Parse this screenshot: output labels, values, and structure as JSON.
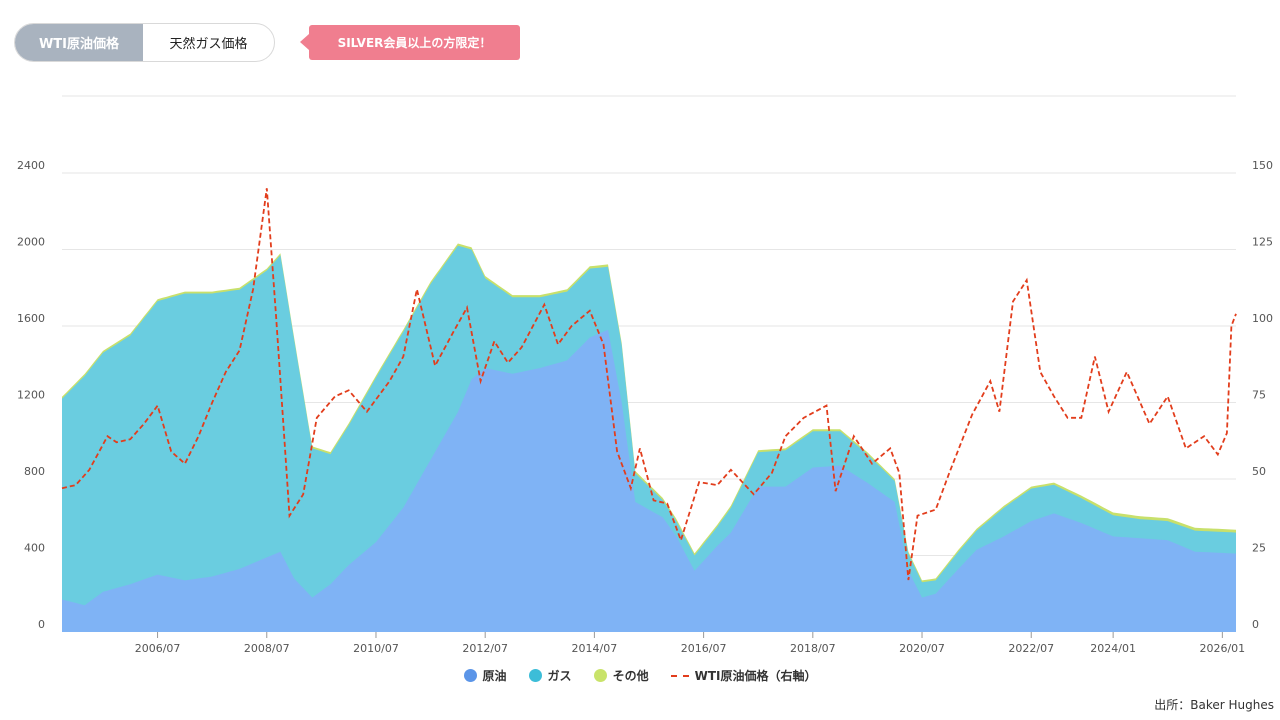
{
  "tabs": {
    "active_label": "WTI原油価格",
    "inactive_label": "天然ガス価格"
  },
  "badge": {
    "label": "SILVER会員以上の方限定！"
  },
  "source": "出所：Baker Hughes",
  "colors": {
    "oil": "#7fb3f5",
    "gas": "#6acde0",
    "other": "#c8e06b",
    "wti": "#e23d1c",
    "legend_oil": "#5b95e8",
    "legend_gas": "#3cbdd8",
    "legend_other": "#c9e36a"
  },
  "chart_data": {
    "type": "area",
    "stacked": true,
    "x_type": "date",
    "x_range": [
      "2004-10",
      "2026-04"
    ],
    "xticks": [
      "2006/07",
      "2008/07",
      "2010/07",
      "2012/07",
      "2014/07",
      "2016/07",
      "2018/07",
      "2020/07",
      "2022/07",
      "2024/01",
      "2026/01"
    ],
    "y_left": {
      "ticks": [
        0,
        400,
        800,
        1200,
        1600,
        2000,
        2400
      ],
      "range": [
        0,
        2400
      ]
    },
    "y_right": {
      "ticks": [
        0,
        25,
        50,
        75,
        100,
        125,
        150
      ],
      "range": [
        0,
        150
      ]
    },
    "grid": true,
    "legend_position": "bottom",
    "series": [
      {
        "name": "原油",
        "axis": "left",
        "kind": "area",
        "points": [
          [
            "2004-10",
            170
          ],
          [
            "2005-03",
            140
          ],
          [
            "2005-07",
            210
          ],
          [
            "2006-01",
            250
          ],
          [
            "2006-07",
            300
          ],
          [
            "2007-01",
            270
          ],
          [
            "2007-07",
            290
          ],
          [
            "2008-01",
            330
          ],
          [
            "2008-07",
            390
          ],
          [
            "2008-10",
            420
          ],
          [
            "2009-01",
            280
          ],
          [
            "2009-05",
            180
          ],
          [
            "2009-09",
            250
          ],
          [
            "2010-01",
            350
          ],
          [
            "2010-07",
            470
          ],
          [
            "2011-01",
            650
          ],
          [
            "2011-07",
            900
          ],
          [
            "2012-01",
            1150
          ],
          [
            "2012-04",
            1320
          ],
          [
            "2012-07",
            1380
          ],
          [
            "2013-01",
            1350
          ],
          [
            "2013-07",
            1380
          ],
          [
            "2014-01",
            1420
          ],
          [
            "2014-06",
            1540
          ],
          [
            "2014-10",
            1580
          ],
          [
            "2015-01",
            1200
          ],
          [
            "2015-04",
            680
          ],
          [
            "2015-10",
            600
          ],
          [
            "2016-01",
            500
          ],
          [
            "2016-05",
            320
          ],
          [
            "2016-10",
            450
          ],
          [
            "2017-01",
            520
          ],
          [
            "2017-07",
            760
          ],
          [
            "2018-01",
            760
          ],
          [
            "2018-07",
            860
          ],
          [
            "2019-01",
            870
          ],
          [
            "2019-07",
            780
          ],
          [
            "2020-01",
            680
          ],
          [
            "2020-04",
            320
          ],
          [
            "2020-07",
            180
          ],
          [
            "2020-10",
            200
          ],
          [
            "2021-03",
            330
          ],
          [
            "2021-07",
            430
          ],
          [
            "2022-01",
            500
          ],
          [
            "2022-07",
            580
          ],
          [
            "2022-12",
            620
          ],
          [
            "2023-06",
            570
          ],
          [
            "2024-01",
            500
          ],
          [
            "2024-07",
            490
          ],
          [
            "2025-01",
            480
          ],
          [
            "2025-07",
            420
          ],
          [
            "2026-04",
            410
          ]
        ]
      },
      {
        "name": "ガス",
        "axis": "left",
        "kind": "area",
        "points": [
          [
            "2004-10",
            1050
          ],
          [
            "2005-03",
            1200
          ],
          [
            "2005-07",
            1250
          ],
          [
            "2006-01",
            1300
          ],
          [
            "2006-07",
            1430
          ],
          [
            "2007-01",
            1500
          ],
          [
            "2007-07",
            1480
          ],
          [
            "2008-01",
            1460
          ],
          [
            "2008-07",
            1500
          ],
          [
            "2008-10",
            1550
          ],
          [
            "2009-01",
            1250
          ],
          [
            "2009-05",
            780
          ],
          [
            "2009-09",
            680
          ],
          [
            "2010-01",
            730
          ],
          [
            "2010-07",
            860
          ],
          [
            "2011-01",
            920
          ],
          [
            "2011-07",
            920
          ],
          [
            "2012-01",
            870
          ],
          [
            "2012-04",
            680
          ],
          [
            "2012-07",
            470
          ],
          [
            "2013-01",
            400
          ],
          [
            "2013-07",
            370
          ],
          [
            "2014-01",
            360
          ],
          [
            "2014-06",
            360
          ],
          [
            "2014-10",
            330
          ],
          [
            "2015-01",
            300
          ],
          [
            "2015-04",
            150
          ],
          [
            "2015-10",
            90
          ],
          [
            "2016-01",
            80
          ],
          [
            "2016-05",
            80
          ],
          [
            "2016-10",
            100
          ],
          [
            "2017-01",
            130
          ],
          [
            "2017-07",
            180
          ],
          [
            "2018-01",
            190
          ],
          [
            "2018-07",
            190
          ],
          [
            "2019-01",
            180
          ],
          [
            "2019-07",
            150
          ],
          [
            "2020-01",
            110
          ],
          [
            "2020-04",
            90
          ],
          [
            "2020-07",
            80
          ],
          [
            "2020-10",
            70
          ],
          [
            "2021-03",
            90
          ],
          [
            "2021-07",
            100
          ],
          [
            "2022-01",
            150
          ],
          [
            "2022-07",
            170
          ],
          [
            "2022-12",
            150
          ],
          [
            "2023-06",
            130
          ],
          [
            "2024-01",
            110
          ],
          [
            "2024-07",
            100
          ],
          [
            "2025-01",
            100
          ],
          [
            "2025-07",
            110
          ],
          [
            "2026-04",
            110
          ]
        ]
      },
      {
        "name": "その他",
        "axis": "left",
        "kind": "area",
        "points": [
          [
            "2004-10",
            10
          ],
          [
            "2008-07",
            10
          ],
          [
            "2014-06",
            12
          ],
          [
            "2018-07",
            10
          ],
          [
            "2022-07",
            10
          ],
          [
            "2024-01",
            15
          ],
          [
            "2026-04",
            15
          ]
        ]
      },
      {
        "name": "WTI原油価格（右軸）",
        "axis": "right",
        "kind": "dashed-line",
        "points": [
          [
            "2004-10",
            47
          ],
          [
            "2005-01",
            48
          ],
          [
            "2005-04",
            53
          ],
          [
            "2005-08",
            64
          ],
          [
            "2005-10",
            62
          ],
          [
            "2006-01",
            63
          ],
          [
            "2006-04",
            68
          ],
          [
            "2006-07",
            74
          ],
          [
            "2006-10",
            59
          ],
          [
            "2007-01",
            55
          ],
          [
            "2007-04",
            64
          ],
          [
            "2007-07",
            75
          ],
          [
            "2007-10",
            85
          ],
          [
            "2008-01",
            92
          ],
          [
            "2008-04",
            112
          ],
          [
            "2008-07",
            145
          ],
          [
            "2008-09",
            104
          ],
          [
            "2008-11",
            60
          ],
          [
            "2008-12",
            38
          ],
          [
            "2009-03",
            45
          ],
          [
            "2009-06",
            70
          ],
          [
            "2009-10",
            77
          ],
          [
            "2010-01",
            79
          ],
          [
            "2010-05",
            72
          ],
          [
            "2010-10",
            82
          ],
          [
            "2011-01",
            90
          ],
          [
            "2011-04",
            112
          ],
          [
            "2011-08",
            87
          ],
          [
            "2011-12",
            98
          ],
          [
            "2012-03",
            106
          ],
          [
            "2012-06",
            82
          ],
          [
            "2012-09",
            95
          ],
          [
            "2012-12",
            88
          ],
          [
            "2013-03",
            93
          ],
          [
            "2013-08",
            107
          ],
          [
            "2013-11",
            94
          ],
          [
            "2014-02",
            100
          ],
          [
            "2014-06",
            105
          ],
          [
            "2014-09",
            94
          ],
          [
            "2014-12",
            59
          ],
          [
            "2015-03",
            47
          ],
          [
            "2015-05",
            60
          ],
          [
            "2015-08",
            43
          ],
          [
            "2015-11",
            42
          ],
          [
            "2016-02",
            30
          ],
          [
            "2016-06",
            49
          ],
          [
            "2016-10",
            48
          ],
          [
            "2017-01",
            53
          ],
          [
            "2017-06",
            45
          ],
          [
            "2017-10",
            52
          ],
          [
            "2018-01",
            64
          ],
          [
            "2018-05",
            70
          ],
          [
            "2018-10",
            74
          ],
          [
            "2018-12",
            46
          ],
          [
            "2019-04",
            64
          ],
          [
            "2019-08",
            55
          ],
          [
            "2019-12",
            60
          ],
          [
            "2020-02",
            52
          ],
          [
            "2020-04",
            17
          ],
          [
            "2020-06",
            38
          ],
          [
            "2020-10",
            40
          ],
          [
            "2021-01",
            52
          ],
          [
            "2021-06",
            71
          ],
          [
            "2021-10",
            82
          ],
          [
            "2021-12",
            72
          ],
          [
            "2022-03",
            108
          ],
          [
            "2022-06",
            115
          ],
          [
            "2022-09",
            85
          ],
          [
            "2022-12",
            77
          ],
          [
            "2023-03",
            70
          ],
          [
            "2023-06",
            70
          ],
          [
            "2023-09",
            90
          ],
          [
            "2023-12",
            72
          ],
          [
            "2024-04",
            85
          ],
          [
            "2024-09",
            68
          ],
          [
            "2025-01",
            77
          ],
          [
            "2025-05",
            60
          ],
          [
            "2025-09",
            64
          ],
          [
            "2025-12",
            58
          ],
          [
            "2026-02",
            65
          ],
          [
            "2026-03",
            100
          ],
          [
            "2026-04",
            104
          ]
        ]
      }
    ]
  }
}
